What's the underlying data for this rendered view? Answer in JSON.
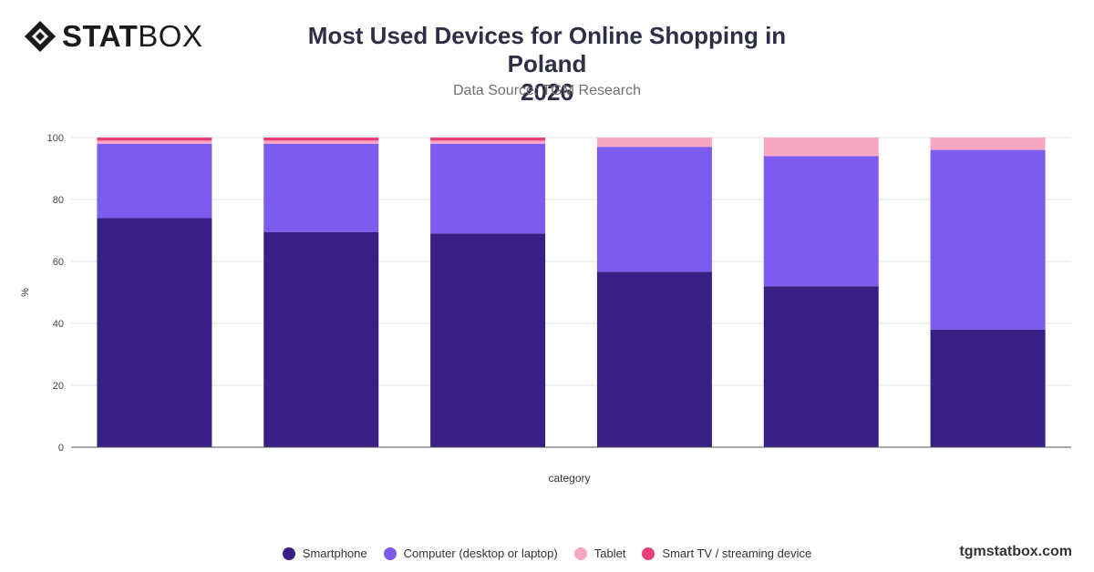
{
  "logo": {
    "strong": "STAT",
    "light": "BOX"
  },
  "title": "Most Used Devices for Online Shopping in Poland",
  "title_line2": "2026",
  "subtitle": "Data Source: TGM Research",
  "brand_url": "tgmstatbox.com",
  "colors": {
    "axis": "#555555",
    "grid": "#e3e3e3",
    "logo": "#1b1b1b"
  },
  "chart_data": {
    "type": "bar",
    "stacked": true,
    "title": "Most Used Devices for Online Shopping in Poland 2026",
    "subtitle": "Data Source: TGM Research",
    "xlabel": "category",
    "ylabel": "%",
    "ylim": [
      0,
      100
    ],
    "yticks": [
      0,
      20,
      40,
      60,
      80,
      100
    ],
    "categories": [
      "",
      "",
      "",
      "",
      "",
      ""
    ],
    "grid": true,
    "legend_position": "bottom",
    "series": [
      {
        "name": "Smartphone",
        "color": "#371f85",
        "values": [
          74,
          69.5,
          69,
          56.7,
          52,
          38
        ]
      },
      {
        "name": "Computer (desktop or laptop)",
        "color": "#7b5cef",
        "values": [
          24,
          28.5,
          29,
          40.3,
          42,
          58
        ]
      },
      {
        "name": "Tablet",
        "color": "#f9a6c5",
        "values": [
          1,
          1,
          1,
          3,
          6,
          4
        ]
      },
      {
        "name": "Smart TV / streaming device",
        "color": "#ec407a",
        "values": [
          1,
          1,
          1,
          0,
          0,
          0
        ]
      }
    ]
  }
}
